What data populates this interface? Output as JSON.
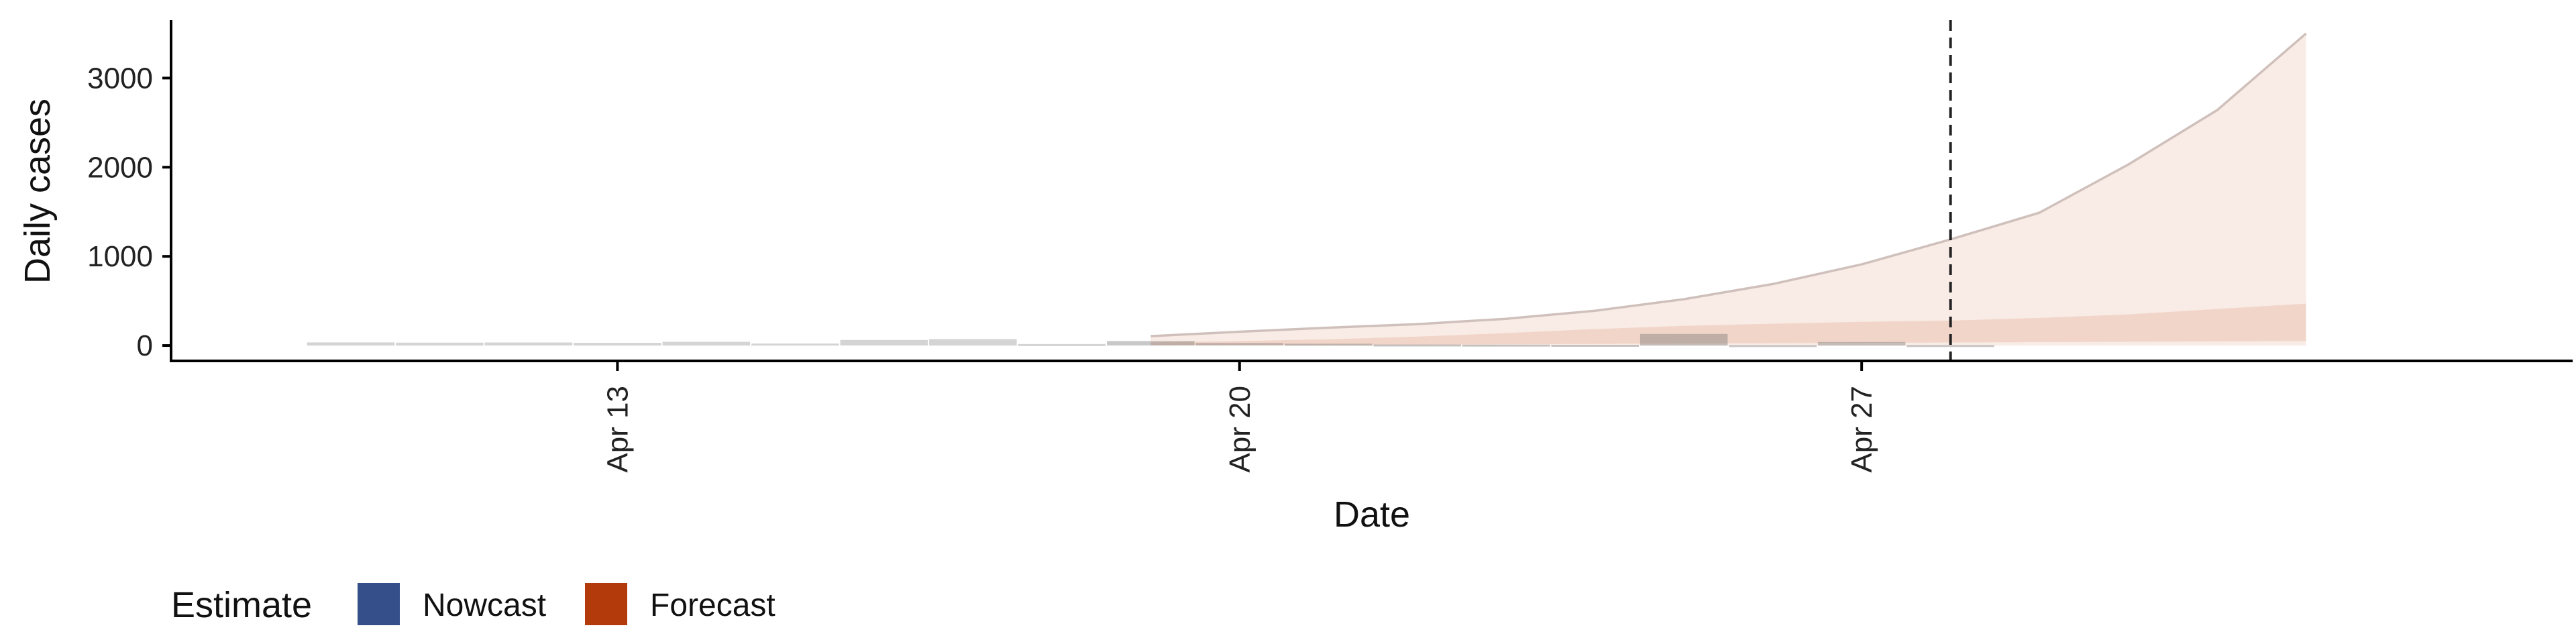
{
  "chart_data": {
    "type": "area",
    "xlabel": "Date",
    "ylabel": "Daily cases",
    "x_type": "date",
    "xlim": [
      "2020-04-08",
      "2020-05-05"
    ],
    "ylim": [
      -150,
      3650
    ],
    "y_ticks": [
      0,
      1000,
      2000,
      3000
    ],
    "y_tick_labels": [
      "0",
      "1000",
      "2000",
      "3000"
    ],
    "x_ticks": [
      "2020-04-13",
      "2020-04-20",
      "2020-04-27"
    ],
    "x_tick_labels": [
      "Apr 13",
      "Apr 20",
      "Apr 27"
    ],
    "vline_date": "2020-04-28",
    "grid": false,
    "legend": {
      "title": "Estimate",
      "position": "bottom-left",
      "items": [
        {
          "label": "Nowcast",
          "color": "#354f8a"
        },
        {
          "label": "Forecast",
          "color": "#b23a0b"
        }
      ]
    },
    "nowcast_bars": [
      {
        "date": "2020-04-10",
        "value": 35
      },
      {
        "date": "2020-04-11",
        "value": 32
      },
      {
        "date": "2020-04-12",
        "value": 34
      },
      {
        "date": "2020-04-13",
        "value": 30
      },
      {
        "date": "2020-04-14",
        "value": 42
      },
      {
        "date": "2020-04-15",
        "value": 22
      },
      {
        "date": "2020-04-16",
        "value": 62
      },
      {
        "date": "2020-04-17",
        "value": 72
      },
      {
        "date": "2020-04-18",
        "value": 16
      }
    ],
    "observed_bars": [
      {
        "date": "2020-04-19",
        "value": 50
      },
      {
        "date": "2020-04-20",
        "value": 28
      },
      {
        "date": "2020-04-21",
        "value": 20
      },
      {
        "date": "2020-04-22",
        "value": 12
      },
      {
        "date": "2020-04-23",
        "value": 10
      },
      {
        "date": "2020-04-24",
        "value": 8
      },
      {
        "date": "2020-04-25",
        "value": 130
      },
      {
        "date": "2020-04-26",
        "value": 5
      },
      {
        "date": "2020-04-27",
        "value": 40
      },
      {
        "date": "2020-04-28",
        "value": 6
      }
    ],
    "forecast_outer": {
      "dates": [
        "2020-04-19",
        "2020-04-20",
        "2020-04-21",
        "2020-04-22",
        "2020-04-23",
        "2020-04-24",
        "2020-04-25",
        "2020-04-26",
        "2020-04-27",
        "2020-04-28",
        "2020-04-29",
        "2020-04-30",
        "2020-05-01",
        "2020-05-02"
      ],
      "lower": [
        0,
        0,
        0,
        0,
        0,
        0,
        0,
        0,
        0,
        0,
        0,
        0,
        0,
        0
      ],
      "upper": [
        105,
        155,
        200,
        240,
        300,
        390,
        520,
        690,
        910,
        1190,
        1490,
        2030,
        2640,
        3500
      ]
    },
    "forecast_inner": {
      "dates": [
        "2020-04-19",
        "2020-04-20",
        "2020-04-21",
        "2020-04-22",
        "2020-04-23",
        "2020-04-24",
        "2020-04-25",
        "2020-04-26",
        "2020-04-27",
        "2020-04-28",
        "2020-04-29",
        "2020-04-30",
        "2020-05-01",
        "2020-05-02"
      ],
      "lower": [
        5,
        8,
        10,
        12,
        15,
        18,
        22,
        26,
        30,
        34,
        38,
        42,
        46,
        50
      ],
      "upper": [
        35,
        50,
        70,
        100,
        140,
        185,
        220,
        245,
        265,
        280,
        310,
        350,
        410,
        470
      ]
    }
  }
}
